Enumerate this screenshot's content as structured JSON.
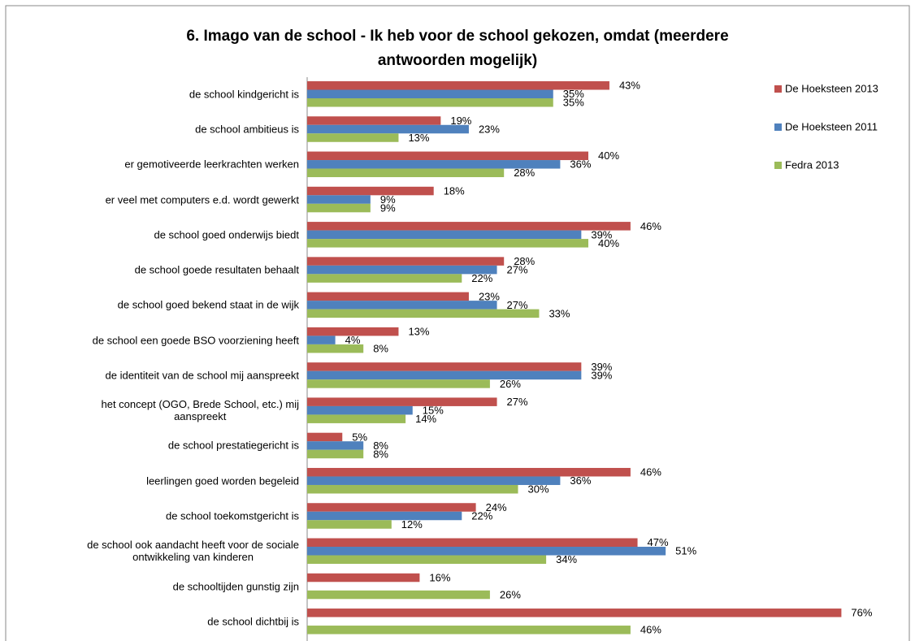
{
  "chart_data": {
    "type": "bar",
    "orientation": "horizontal",
    "title": "6. Imago van de school - Ik heb voor de school gekozen, omdat (meerdere\nantwoorden mogelijk)",
    "categories": [
      "de school kindgericht is",
      "de school ambitieus is",
      "er gemotiveerde leerkrachten werken",
      "er veel met computers e.d. wordt gewerkt",
      "de school goed onderwijs biedt",
      "de school goede resultaten behaalt",
      "de school goed bekend staat in de wijk",
      "de school een goede BSO voorziening heeft",
      "de identiteit van de school mij aanspreekt",
      "het concept (OGO, Brede School, etc.) mij\naanspreekt",
      "de school prestatiegericht is",
      "leerlingen goed worden begeleid",
      "de school toekomstgericht is",
      "de school ook aandacht heeft voor de sociale\nontwikkeling van kinderen",
      "de schooltijden gunstig zijn",
      "de school dichtbij is"
    ],
    "series": [
      {
        "name": "De Hoeksteen 2013",
        "color": "#c0504d",
        "values": [
          43,
          19,
          40,
          18,
          46,
          28,
          23,
          13,
          39,
          27,
          5,
          46,
          24,
          47,
          16,
          76
        ],
        "value_labels": [
          "43%",
          "19%",
          "40%",
          "18%",
          "46%",
          "28%",
          "23%",
          "13%",
          "39%",
          "27%",
          "5%",
          "46%",
          "24%",
          "47%",
          "16%",
          "76%"
        ]
      },
      {
        "name": "De Hoeksteen 2011",
        "color": "#4f81bd",
        "values": [
          35,
          23,
          36,
          9,
          39,
          27,
          27,
          4,
          39,
          15,
          8,
          36,
          22,
          51,
          null,
          null
        ],
        "value_labels": [
          "35%",
          "23%",
          "36%",
          "9%",
          "39%",
          "27%",
          "27%",
          "4%",
          "39%",
          "15%",
          "8%",
          "36%",
          "22%",
          "51%",
          null,
          null
        ]
      },
      {
        "name": "Fedra 2013",
        "color": "#9bbb59",
        "values": [
          35,
          13,
          28,
          9,
          40,
          22,
          33,
          8,
          26,
          14,
          8,
          30,
          12,
          34,
          26,
          46
        ],
        "value_labels": [
          "35%",
          "13%",
          "28%",
          "9%",
          "40%",
          "22%",
          "33%",
          "8%",
          "26%",
          "14%",
          "8%",
          "30%",
          "12%",
          "34%",
          "26%",
          "46%"
        ]
      }
    ],
    "legend": "right"
  }
}
